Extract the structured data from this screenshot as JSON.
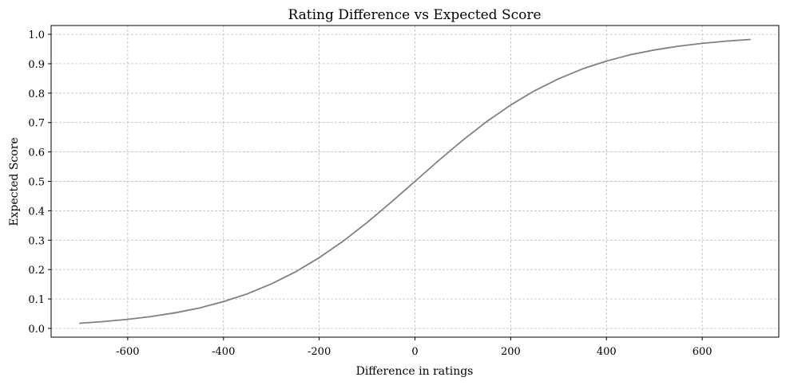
{
  "chart_data": {
    "type": "line",
    "title": "Rating Difference vs Expected Score",
    "xlabel": "Difference in ratings",
    "ylabel": "Expected Score",
    "xlim": [
      -760,
      760
    ],
    "ylim": [
      -0.03,
      1.03
    ],
    "x_ticks": [
      -600,
      -400,
      -200,
      0,
      200,
      400,
      600
    ],
    "x_tick_labels": [
      "-600",
      "-400",
      "-200",
      "0",
      "200",
      "400",
      "600"
    ],
    "y_ticks": [
      0.0,
      0.1,
      0.2,
      0.3,
      0.4,
      0.5,
      0.6,
      0.7,
      0.8,
      0.9,
      1.0
    ],
    "y_tick_labels": [
      "0.0",
      "0.1",
      "0.2",
      "0.3",
      "0.4",
      "0.5",
      "0.6",
      "0.7",
      "0.8",
      "0.9",
      "1.0"
    ],
    "grid": true,
    "line_color": "#808080",
    "grid_color": "#b0b0b0",
    "series": [
      {
        "x": [
          -700,
          -650,
          -600,
          -550,
          -500,
          -450,
          -400,
          -350,
          -300,
          -250,
          -200,
          -150,
          -100,
          -50,
          0,
          50,
          100,
          150,
          200,
          250,
          300,
          350,
          400,
          450,
          500,
          550,
          600,
          650,
          700
        ],
        "values": [
          0.0175,
          0.0233,
          0.0307,
          0.0405,
          0.0532,
          0.0694,
          0.0909,
          0.1175,
          0.151,
          0.1917,
          0.2403,
          0.2966,
          0.3599,
          0.4285,
          0.5,
          0.5715,
          0.6401,
          0.7034,
          0.7597,
          0.8083,
          0.849,
          0.8825,
          0.9091,
          0.9306,
          0.9468,
          0.9595,
          0.9693,
          0.9767,
          0.9825
        ]
      }
    ]
  }
}
